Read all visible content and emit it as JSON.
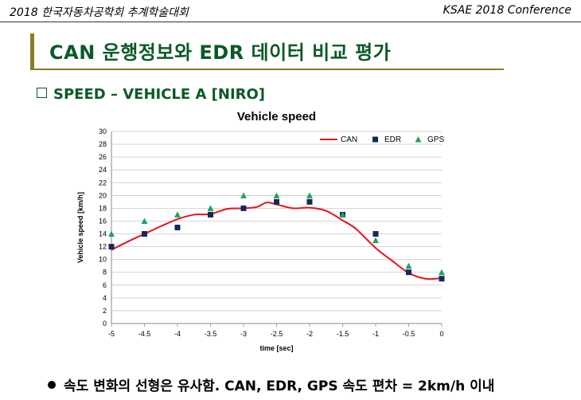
{
  "header": {
    "left": "2018 한국자동차공학회  추계학술대회",
    "right": "KSAE  2018   Conference"
  },
  "slide": {
    "title": "CAN 운행정보와 EDR 데이터 비교 평가",
    "subtitle": "SPEED – VEHICLE  A [NIRO]",
    "bullet": "속도 변화의 선형은 유사함. CAN, EDR, GPS 속도 편차 = 2km/h 이내"
  },
  "colors": {
    "can": "#e8131b",
    "edr": "#14285c",
    "gps": "#1fa55a",
    "grid": "#c8c8c8",
    "title_green": "#0b5a26",
    "accent_olive": "#8b7d1e"
  },
  "chart_data": {
    "type": "line",
    "title": "Vehicle speed",
    "xlabel": "time [sec]",
    "ylabel": "Vehicle speed [km/h]",
    "xlim": [
      -5,
      0
    ],
    "ylim": [
      0,
      30
    ],
    "x_ticks": [
      "-5",
      "-4.5",
      "-4",
      "-3.5",
      "-3",
      "-2.5",
      "-2",
      "-1.5",
      "-1",
      "-0.5",
      "0"
    ],
    "y_ticks": [
      "0",
      "2",
      "4",
      "6",
      "8",
      "10",
      "12",
      "14",
      "16",
      "18",
      "20",
      "22",
      "24",
      "26",
      "28",
      "30"
    ],
    "legend": [
      "CAN",
      "EDR",
      "GPS"
    ],
    "series": [
      {
        "name": "CAN",
        "style": "line",
        "x": [
          -5.0,
          -4.75,
          -4.5,
          -4.25,
          -4.0,
          -3.75,
          -3.5,
          -3.25,
          -3.0,
          -2.8,
          -2.65,
          -2.5,
          -2.25,
          -2.0,
          -1.75,
          -1.5,
          -1.3,
          -1.0,
          -0.75,
          -0.5,
          -0.25,
          0.0
        ],
        "values": [
          11.5,
          12.8,
          14.0,
          15.2,
          16.3,
          17.0,
          17.1,
          17.9,
          18.0,
          18.2,
          18.9,
          18.6,
          18.0,
          18.1,
          17.6,
          16.1,
          14.8,
          11.8,
          9.8,
          7.9,
          7.0,
          7.1
        ]
      },
      {
        "name": "EDR",
        "style": "square",
        "x": [
          -5.0,
          -4.5,
          -4.0,
          -3.5,
          -3.0,
          -2.5,
          -2.0,
          -1.5,
          -1.0,
          -0.5,
          0.0
        ],
        "values": [
          12,
          14,
          15,
          17,
          18,
          19,
          19,
          17,
          14,
          8,
          7
        ]
      },
      {
        "name": "GPS",
        "style": "triangle",
        "x": [
          -5.0,
          -4.5,
          -4.0,
          -3.5,
          -3.0,
          -2.5,
          -2.0,
          -1.5,
          -1.0,
          -0.5,
          0.0
        ],
        "values": [
          14,
          16,
          17,
          18,
          20,
          20,
          20,
          17,
          13,
          9,
          8
        ]
      }
    ]
  }
}
